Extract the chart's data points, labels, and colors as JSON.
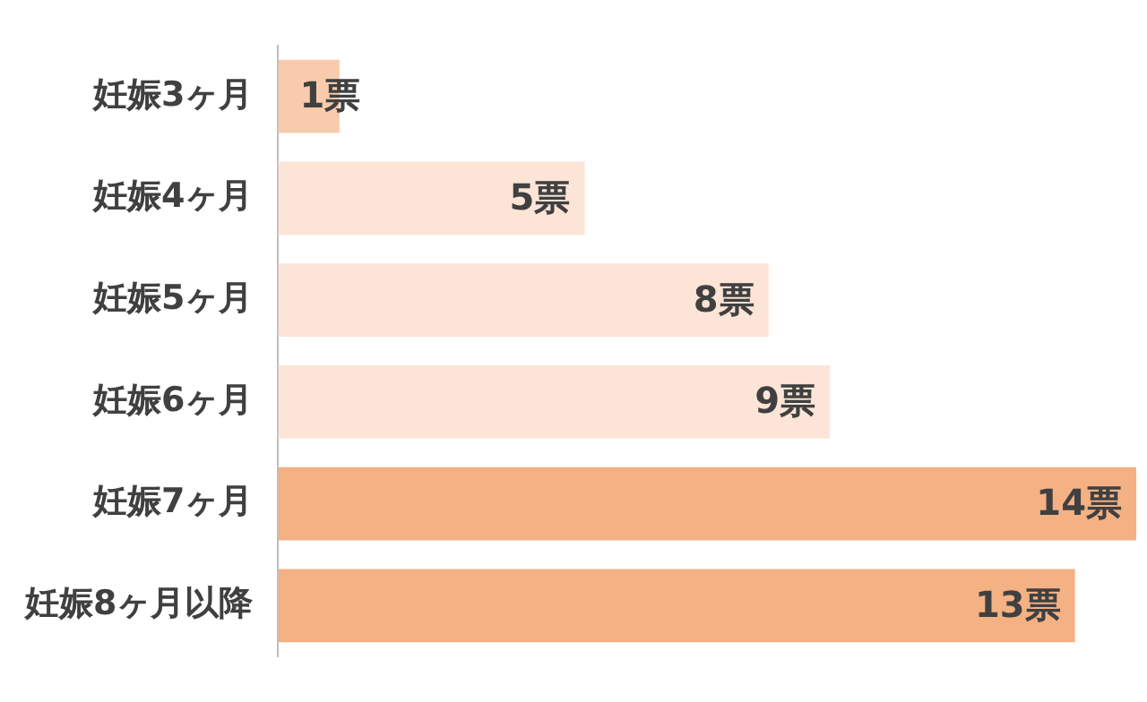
{
  "chart_data": {
    "type": "bar",
    "orientation": "horizontal",
    "categories": [
      "妊娠3ヶ月",
      "妊娠4ヶ月",
      "妊娠5ヶ月",
      "妊娠6ヶ月",
      "妊娠7ヶ月",
      "妊娠8ヶ月以降"
    ],
    "values": [
      1,
      5,
      8,
      9,
      14,
      13
    ],
    "colors": [
      "#f8cbad",
      "#fce4d6",
      "#fce4d6",
      "#fce4d6",
      "#f4b183",
      "#f4b183"
    ],
    "value_labels": [
      "1票",
      "5票",
      "8票",
      "9票",
      "14票",
      "13票"
    ],
    "tick_labels": "y",
    "grid": false,
    "legend": false
  }
}
